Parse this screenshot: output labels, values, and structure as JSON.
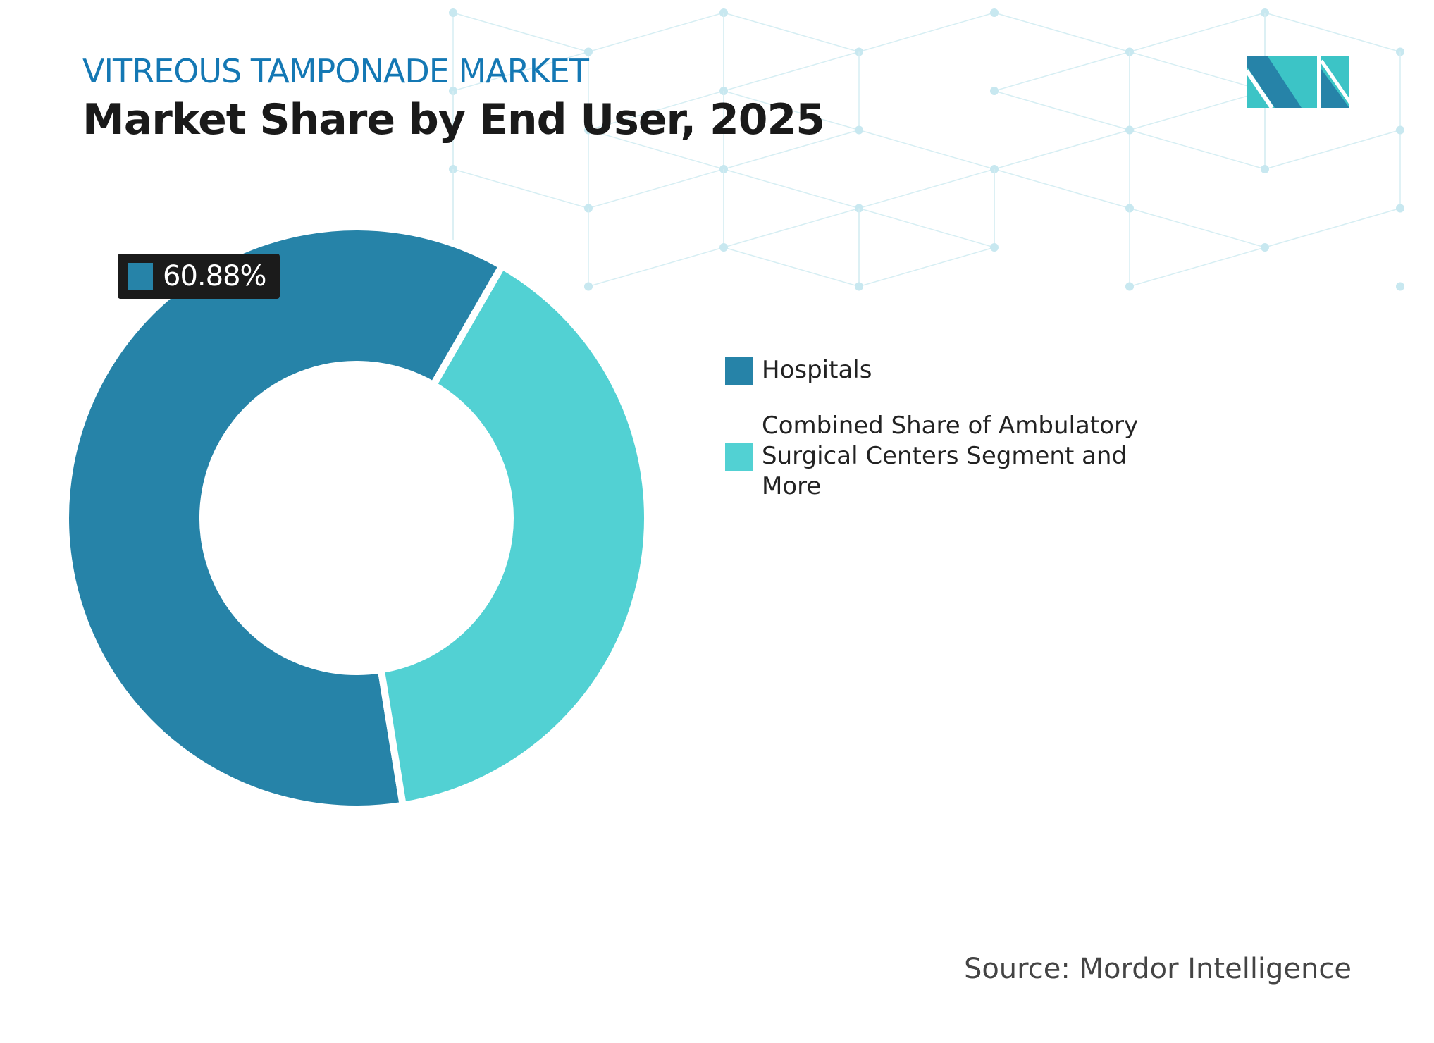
{
  "header": {
    "kicker": "VITREOUS TAMPONADE MARKET",
    "title": "Market Share by End User, 2025"
  },
  "chart_data": {
    "type": "pie",
    "variant": "donut",
    "categories": [
      "Hospitals",
      "Combined Share of Ambulatory Surgical Centers Segment and More"
    ],
    "values": [
      60.88,
      39.12
    ],
    "colors": [
      "#2683a8",
      "#52d1d3"
    ],
    "data_labels": [
      {
        "category": "Hospitals",
        "text": "60.88%"
      }
    ],
    "legend_position": "right"
  },
  "source": "Source: Mordor Intelligence",
  "logo": {
    "name": "mordor-intelligence-logo",
    "colors": [
      "#2683a8",
      "#3cc4c6"
    ]
  }
}
